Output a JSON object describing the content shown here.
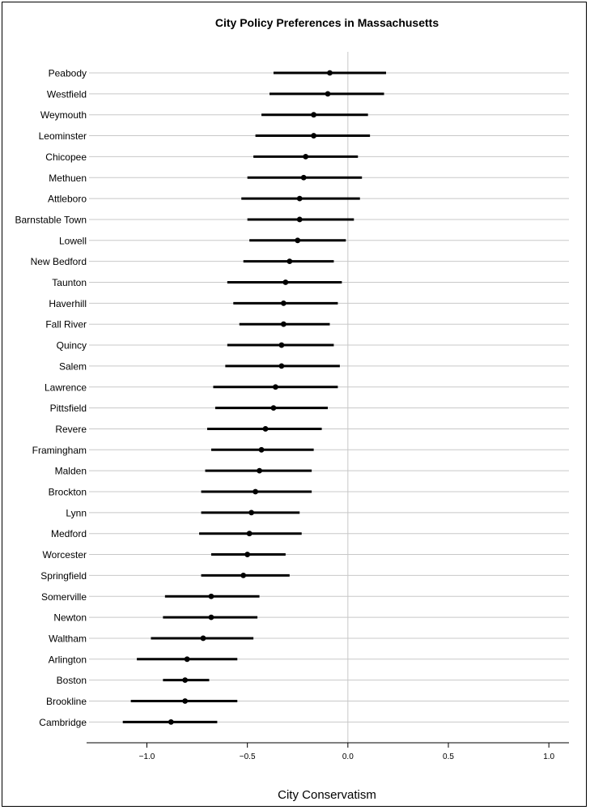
{
  "chart_data": {
    "type": "dot-interval",
    "title": "City Policy Preferences in Massachusetts",
    "xlabel": "City Conservatism",
    "ylabel": "",
    "xlim": [
      -1.3,
      1.1
    ],
    "xticks": [
      -1.0,
      -0.5,
      0.0,
      0.5,
      1.0
    ],
    "xtick_labels": [
      "−1.0",
      "−0.5",
      "0.0",
      "0.5",
      "1.0"
    ],
    "reference_line_x": 0.0,
    "grid": true,
    "colors": {
      "marks": "#000000",
      "grid": "#c8c8c8",
      "reference": "#c8c8c8"
    },
    "cities": [
      {
        "name": "Peabody",
        "estimate": -0.09,
        "low": -0.37,
        "high": 0.19
      },
      {
        "name": "Westfield",
        "estimate": -0.1,
        "low": -0.39,
        "high": 0.18
      },
      {
        "name": "Weymouth",
        "estimate": -0.17,
        "low": -0.43,
        "high": 0.1
      },
      {
        "name": "Leominster",
        "estimate": -0.17,
        "low": -0.46,
        "high": 0.11
      },
      {
        "name": "Chicopee",
        "estimate": -0.21,
        "low": -0.47,
        "high": 0.05
      },
      {
        "name": "Methuen",
        "estimate": -0.22,
        "low": -0.5,
        "high": 0.07
      },
      {
        "name": "Attleboro",
        "estimate": -0.24,
        "low": -0.53,
        "high": 0.06
      },
      {
        "name": "Barnstable Town",
        "estimate": -0.24,
        "low": -0.5,
        "high": 0.03
      },
      {
        "name": "Lowell",
        "estimate": -0.25,
        "low": -0.49,
        "high": -0.01
      },
      {
        "name": "New Bedford",
        "estimate": -0.29,
        "low": -0.52,
        "high": -0.07
      },
      {
        "name": "Taunton",
        "estimate": -0.31,
        "low": -0.6,
        "high": -0.03
      },
      {
        "name": "Haverhill",
        "estimate": -0.32,
        "low": -0.57,
        "high": -0.05
      },
      {
        "name": "Fall River",
        "estimate": -0.32,
        "low": -0.54,
        "high": -0.09
      },
      {
        "name": "Quincy",
        "estimate": -0.33,
        "low": -0.6,
        "high": -0.07
      },
      {
        "name": "Salem",
        "estimate": -0.33,
        "low": -0.61,
        "high": -0.04
      },
      {
        "name": "Lawrence",
        "estimate": -0.36,
        "low": -0.67,
        "high": -0.05
      },
      {
        "name": "Pittsfield",
        "estimate": -0.37,
        "low": -0.66,
        "high": -0.1
      },
      {
        "name": "Revere",
        "estimate": -0.41,
        "low": -0.7,
        "high": -0.13
      },
      {
        "name": "Framingham",
        "estimate": -0.43,
        "low": -0.68,
        "high": -0.17
      },
      {
        "name": "Malden",
        "estimate": -0.44,
        "low": -0.71,
        "high": -0.18
      },
      {
        "name": "Brockton",
        "estimate": -0.46,
        "low": -0.73,
        "high": -0.18
      },
      {
        "name": "Lynn",
        "estimate": -0.48,
        "low": -0.73,
        "high": -0.24
      },
      {
        "name": "Medford",
        "estimate": -0.49,
        "low": -0.74,
        "high": -0.23
      },
      {
        "name": "Worcester",
        "estimate": -0.5,
        "low": -0.68,
        "high": -0.31
      },
      {
        "name": "Springfield",
        "estimate": -0.52,
        "low": -0.73,
        "high": -0.29
      },
      {
        "name": "Somerville",
        "estimate": -0.68,
        "low": -0.91,
        "high": -0.44
      },
      {
        "name": "Newton",
        "estimate": -0.68,
        "low": -0.92,
        "high": -0.45
      },
      {
        "name": "Waltham",
        "estimate": -0.72,
        "low": -0.98,
        "high": -0.47
      },
      {
        "name": "Arlington",
        "estimate": -0.8,
        "low": -1.05,
        "high": -0.55
      },
      {
        "name": "Boston",
        "estimate": -0.81,
        "low": -0.92,
        "high": -0.69
      },
      {
        "name": "Brookline",
        "estimate": -0.81,
        "low": -1.08,
        "high": -0.55
      },
      {
        "name": "Cambridge",
        "estimate": -0.88,
        "low": -1.12,
        "high": -0.65
      }
    ]
  }
}
